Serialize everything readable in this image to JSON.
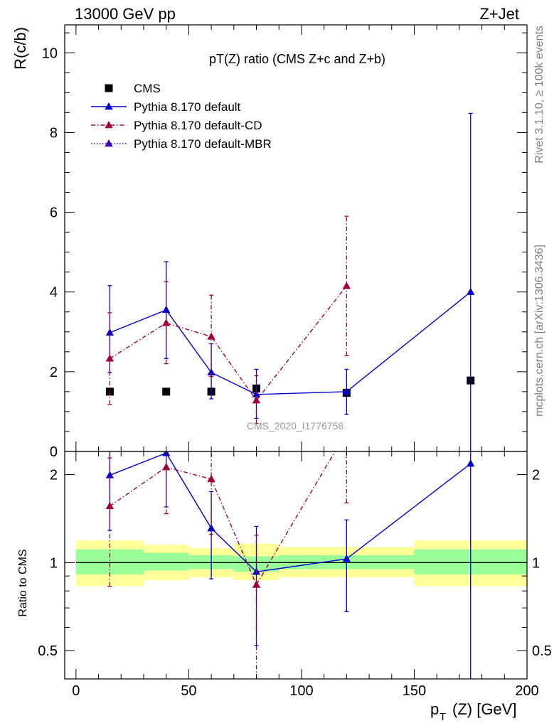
{
  "header": {
    "energy_label": "13000 GeV pp",
    "process_label": "Z+Jet"
  },
  "side_labels": {
    "rivet": "Rivet 3.1.10, ≥ 100k events",
    "mcplots": "mcplots.cern.ch [arXiv:1306.3436]"
  },
  "chart_data": [
    {
      "type": "line",
      "panel": "main",
      "title": "pT(Z) ratio (CMS  Z+c and Z+b)",
      "ylabel": "R(c/b)",
      "xlim": [
        -5,
        200
      ],
      "ylim": [
        0,
        10.7
      ],
      "yticks": [
        0,
        2,
        4,
        6,
        8,
        10
      ],
      "watermark": "CMS_2020_I1776758",
      "legend": {
        "placement": "top-left"
      },
      "series": [
        {
          "name": "CMS",
          "style": "markers",
          "marker": "square",
          "color": "#000000",
          "x": [
            15,
            40,
            60,
            80,
            120,
            175
          ],
          "y": [
            1.5,
            1.5,
            1.5,
            1.58,
            1.47,
            1.78
          ]
        },
        {
          "name": "Pythia 8.170 default",
          "style": "solid",
          "marker": "triangle",
          "color": "#0000cc",
          "x": [
            15,
            40,
            60,
            80,
            120,
            175
          ],
          "y": [
            2.98,
            3.55,
            1.98,
            1.43,
            1.5,
            4.0
          ],
          "yerr_low": [
            1.98,
            2.33,
            1.32,
            0.83,
            0.93,
            0.0
          ],
          "yerr_high": [
            4.16,
            4.76,
            2.7,
            2.06,
            2.06,
            8.48
          ]
        },
        {
          "name": "Pythia 8.170 default-CD",
          "style": "dashdot",
          "marker": "triangle",
          "color": "#a0003a",
          "x": [
            15,
            40,
            60,
            80,
            120
          ],
          "y": [
            2.33,
            3.22,
            2.88,
            1.28,
            4.15
          ],
          "yerr_low": [
            1.18,
            2.2,
            1.88,
            0.7,
            2.4
          ],
          "yerr_high": [
            3.48,
            4.26,
            3.92,
            1.9,
            5.9
          ]
        },
        {
          "name": "Pythia 8.170 default-MBR",
          "style": "dotted",
          "marker": "triangle",
          "color": "#3a00aa",
          "x": [],
          "y": []
        }
      ]
    },
    {
      "type": "line",
      "panel": "ratio",
      "ylabel": "Ratio to CMS",
      "xlabel": "p_T (Z) [GeV]",
      "xlim": [
        -5,
        200
      ],
      "ylim": [
        0.4,
        2.4
      ],
      "y_scale": "log",
      "xticks": [
        0,
        50,
        100,
        150,
        200
      ],
      "yticks": [
        0.5,
        1,
        2
      ],
      "bands": [
        {
          "x_from": 0,
          "x_to": 30,
          "inner": [
            0.91,
            1.11
          ],
          "outer": [
            0.83,
            1.19
          ]
        },
        {
          "x_from": 30,
          "x_to": 50,
          "inner": [
            0.94,
            1.08
          ],
          "outer": [
            0.87,
            1.15
          ]
        },
        {
          "x_from": 50,
          "x_to": 70,
          "inner": [
            0.95,
            1.06
          ],
          "outer": [
            0.89,
            1.12
          ]
        },
        {
          "x_from": 70,
          "x_to": 90,
          "inner": [
            0.93,
            1.05
          ],
          "outer": [
            0.87,
            1.16
          ]
        },
        {
          "x_from": 90,
          "x_to": 150,
          "inner": [
            0.95,
            1.06
          ],
          "outer": [
            0.89,
            1.13
          ]
        },
        {
          "x_from": 150,
          "x_to": 200,
          "inner": [
            0.91,
            1.11
          ],
          "outer": [
            0.83,
            1.19
          ]
        }
      ],
      "series": [
        {
          "name": "Pythia 8.170 default",
          "color": "#0000cc",
          "style": "solid",
          "x": [
            15,
            40,
            60,
            80,
            120,
            175
          ],
          "y": [
            1.99,
            2.37,
            1.31,
            0.93,
            1.03,
            2.18
          ],
          "yerr_low": [
            1.29,
            1.55,
            0.88,
            0.52,
            0.68,
            0.3
          ],
          "yerr_high": [
            2.6,
            3.2,
            1.75,
            1.33,
            1.4,
            4.6
          ]
        },
        {
          "name": "Pythia 8.170 default-CD",
          "color": "#a0003a",
          "style": "dashdot",
          "x": [
            15,
            40,
            60,
            80,
            120
          ],
          "y": [
            1.56,
            2.12,
            1.93,
            0.84,
            2.8
          ],
          "yerr_low": [
            0.83,
            1.47,
            1.25,
            0.35,
            1.6
          ],
          "yerr_high": [
            2.28,
            2.82,
            2.6,
            1.24,
            4.0
          ]
        }
      ]
    }
  ]
}
